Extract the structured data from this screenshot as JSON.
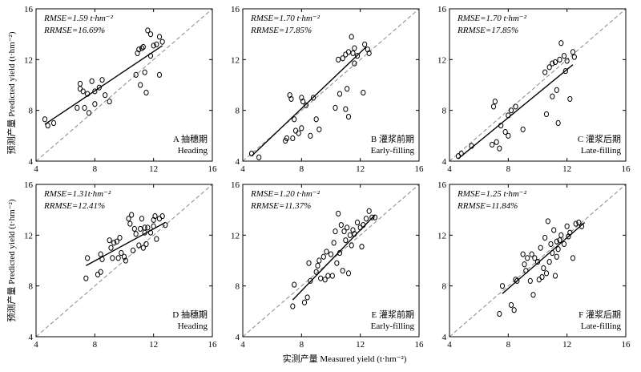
{
  "figure": {
    "x_axis_title": "实测产量 Measured yield (t·hm⁻²)",
    "y_axis_title": "预测产量 Predicted yield (t·hm⁻²)",
    "line_color": "#000000",
    "reference_line_color": "#888888"
  },
  "chart_data": [
    {
      "type": "scatter",
      "panel_id": "A",
      "label_cn": "A 抽穗期",
      "label_en": "Heading",
      "rmse_text": "RMSE=1.59 t·hm⁻²",
      "rrmse_text": "RRMSE=16.69%",
      "xlim": [
        4,
        16
      ],
      "ylim": [
        4,
        16
      ],
      "x_ticks": [
        "4",
        "8",
        "12",
        "16"
      ],
      "y_ticks": [
        "4",
        "8",
        "12",
        "16"
      ],
      "reference_line": "1:1",
      "fit_line": [
        [
          4.6,
          6.9
        ],
        [
          12.6,
          13.1
        ]
      ],
      "points": [
        [
          4.6,
          7.3
        ],
        [
          4.8,
          6.8
        ],
        [
          5.2,
          7.0
        ],
        [
          6.8,
          8.2
        ],
        [
          7.0,
          10.1
        ],
        [
          7.0,
          9.7
        ],
        [
          7.2,
          9.5
        ],
        [
          7.3,
          8.2
        ],
        [
          7.5,
          9.3
        ],
        [
          7.6,
          7.8
        ],
        [
          7.8,
          10.3
        ],
        [
          8.0,
          8.5
        ],
        [
          8.0,
          9.5
        ],
        [
          8.3,
          9.8
        ],
        [
          8.5,
          10.4
        ],
        [
          8.7,
          9.2
        ],
        [
          9.0,
          8.7
        ],
        [
          10.8,
          10.8
        ],
        [
          10.9,
          12.5
        ],
        [
          11.0,
          12.8
        ],
        [
          11.1,
          10.0
        ],
        [
          11.2,
          12.9
        ],
        [
          11.3,
          13.0
        ],
        [
          11.4,
          11.0
        ],
        [
          11.5,
          9.4
        ],
        [
          11.6,
          14.3
        ],
        [
          11.8,
          14.0
        ],
        [
          11.8,
          12.3
        ],
        [
          12.0,
          13.1
        ],
        [
          12.2,
          13.2
        ],
        [
          12.4,
          10.8
        ],
        [
          12.4,
          13.8
        ],
        [
          12.6,
          13.4
        ]
      ]
    },
    {
      "type": "scatter",
      "panel_id": "B",
      "label_cn": "B 灌浆前期",
      "label_en": "Early-filling",
      "rmse_text": "RMSE=1.70 t·hm⁻²",
      "rrmse_text": "RRMSE=17.85%",
      "xlim": [
        4,
        16
      ],
      "ylim": [
        4,
        16
      ],
      "x_ticks": [
        "4",
        "8",
        "12",
        "16"
      ],
      "y_ticks": [
        "4",
        "8",
        "12",
        "16"
      ],
      "reference_line": "1:1",
      "fit_line": [
        [
          4.6,
          4.4
        ],
        [
          12.4,
          13.0
        ]
      ],
      "points": [
        [
          4.6,
          4.6
        ],
        [
          5.1,
          4.3
        ],
        [
          6.9,
          5.6
        ],
        [
          7.0,
          5.8
        ],
        [
          7.2,
          9.2
        ],
        [
          7.3,
          8.9
        ],
        [
          7.4,
          5.8
        ],
        [
          7.5,
          7.3
        ],
        [
          7.6,
          6.4
        ],
        [
          7.8,
          6.2
        ],
        [
          8.0,
          9.0
        ],
        [
          8.0,
          6.6
        ],
        [
          8.1,
          8.7
        ],
        [
          8.3,
          8.4
        ],
        [
          8.6,
          6.0
        ],
        [
          8.8,
          9.0
        ],
        [
          9.0,
          7.3
        ],
        [
          9.2,
          6.5
        ],
        [
          10.3,
          8.2
        ],
        [
          10.5,
          12.0
        ],
        [
          10.6,
          9.3
        ],
        [
          10.8,
          12.1
        ],
        [
          11.0,
          12.4
        ],
        [
          11.0,
          8.1
        ],
        [
          11.1,
          9.7
        ],
        [
          11.2,
          12.6
        ],
        [
          11.4,
          13.8
        ],
        [
          11.5,
          12.5
        ],
        [
          11.6,
          12.9
        ],
        [
          11.6,
          11.7
        ],
        [
          11.8,
          12.3
        ],
        [
          12.2,
          9.4
        ],
        [
          12.3,
          13.2
        ],
        [
          12.5,
          12.8
        ],
        [
          12.6,
          12.5
        ],
        [
          11.2,
          7.5
        ]
      ]
    },
    {
      "type": "scatter",
      "panel_id": "C",
      "label_cn": "C 灌浆后期",
      "label_en": "Late-filling",
      "rmse_text": "RMSE=1.70 t·hm⁻²",
      "rrmse_text": "RRMSE=17.85%",
      "xlim": [
        4,
        16
      ],
      "ylim": [
        4,
        16
      ],
      "x_ticks": [
        "4",
        "8",
        "12",
        "16"
      ],
      "y_ticks": [
        "4",
        "8",
        "12",
        "16"
      ],
      "reference_line": "1:1",
      "fit_line": [
        [
          4.6,
          4.2
        ],
        [
          12.4,
          11.6
        ]
      ],
      "points": [
        [
          4.6,
          4.4
        ],
        [
          4.8,
          4.6
        ],
        [
          5.5,
          5.2
        ],
        [
          6.9,
          5.3
        ],
        [
          7.0,
          8.3
        ],
        [
          7.1,
          8.7
        ],
        [
          7.2,
          5.5
        ],
        [
          7.4,
          5.0
        ],
        [
          7.5,
          6.8
        ],
        [
          7.8,
          6.3
        ],
        [
          8.0,
          7.6
        ],
        [
          8.0,
          6.0
        ],
        [
          8.2,
          8.0
        ],
        [
          8.5,
          8.3
        ],
        [
          9.0,
          6.5
        ],
        [
          10.5,
          11.0
        ],
        [
          10.6,
          7.7
        ],
        [
          10.8,
          11.4
        ],
        [
          11.0,
          9.1
        ],
        [
          11.0,
          11.7
        ],
        [
          11.2,
          11.8
        ],
        [
          11.3,
          9.6
        ],
        [
          11.4,
          7.0
        ],
        [
          11.5,
          12.0
        ],
        [
          11.6,
          13.3
        ],
        [
          11.8,
          12.3
        ],
        [
          12.0,
          11.9
        ],
        [
          12.2,
          8.9
        ],
        [
          12.4,
          12.6
        ],
        [
          12.5,
          12.2
        ],
        [
          11.9,
          11.1
        ]
      ]
    },
    {
      "type": "scatter",
      "panel_id": "D",
      "label_cn": "D 抽穗期",
      "label_en": "Heading",
      "rmse_text": "RMSE=1.31t·hm⁻²",
      "rrmse_text": "RRMSE=12.41%",
      "xlim": [
        4,
        16
      ],
      "ylim": [
        4,
        16
      ],
      "x_ticks": [
        "4",
        "8",
        "12",
        "16"
      ],
      "y_ticks": [
        "4",
        "8",
        "12",
        "16"
      ],
      "reference_line": "1:1",
      "fit_line": [
        [
          7.4,
          9.6
        ],
        [
          12.8,
          13.0
        ]
      ],
      "points": [
        [
          7.4,
          8.6
        ],
        [
          7.5,
          10.2
        ],
        [
          8.2,
          8.9
        ],
        [
          8.4,
          10.5
        ],
        [
          8.4,
          9.1
        ],
        [
          8.5,
          10.1
        ],
        [
          9.0,
          11.6
        ],
        [
          9.1,
          11.0
        ],
        [
          9.2,
          10.2
        ],
        [
          9.3,
          11.4
        ],
        [
          9.5,
          11.5
        ],
        [
          9.6,
          10.2
        ],
        [
          9.7,
          11.8
        ],
        [
          9.8,
          10.6
        ],
        [
          10.0,
          10.3
        ],
        [
          10.1,
          10.0
        ],
        [
          10.3,
          13.3
        ],
        [
          10.4,
          12.9
        ],
        [
          10.5,
          13.6
        ],
        [
          10.6,
          10.8
        ],
        [
          10.7,
          12.5
        ],
        [
          10.8,
          12.1
        ],
        [
          11.0,
          11.2
        ],
        [
          11.1,
          12.5
        ],
        [
          11.2,
          13.3
        ],
        [
          11.3,
          11.0
        ],
        [
          11.4,
          12.2
        ],
        [
          11.5,
          11.3
        ],
        [
          11.6,
          12.6
        ],
        [
          11.8,
          12.2
        ],
        [
          12.0,
          12.7
        ],
        [
          12.1,
          13.5
        ],
        [
          12.2,
          11.7
        ],
        [
          12.4,
          13.3
        ],
        [
          12.6,
          13.5
        ],
        [
          12.8,
          12.8
        ],
        [
          12.0,
          13.2
        ],
        [
          11.4,
          12.6
        ]
      ]
    },
    {
      "type": "scatter",
      "panel_id": "E",
      "label_cn": "E 灌浆前期",
      "label_en": "Early-filling",
      "rmse_text": "RMSE=1.20 t·hm⁻²",
      "rrmse_text": "RRMSE=11.37%",
      "xlim": [
        4,
        16
      ],
      "ylim": [
        4,
        16
      ],
      "x_ticks": [
        "4",
        "8",
        "12",
        "16"
      ],
      "y_ticks": [
        "4",
        "8",
        "12",
        "16"
      ],
      "reference_line": "1:1",
      "fit_line": [
        [
          7.4,
          6.9
        ],
        [
          13.0,
          13.6
        ]
      ],
      "points": [
        [
          7.4,
          6.4
        ],
        [
          7.5,
          8.1
        ],
        [
          8.2,
          6.7
        ],
        [
          8.4,
          7.1
        ],
        [
          8.5,
          9.8
        ],
        [
          8.6,
          8.4
        ],
        [
          9.0,
          9.1
        ],
        [
          9.1,
          9.6
        ],
        [
          9.2,
          10.0
        ],
        [
          9.3,
          8.6
        ],
        [
          9.5,
          10.3
        ],
        [
          9.6,
          8.5
        ],
        [
          9.7,
          10.7
        ],
        [
          9.8,
          8.8
        ],
        [
          10.0,
          10.5
        ],
        [
          10.1,
          8.8
        ],
        [
          10.2,
          11.4
        ],
        [
          10.3,
          12.3
        ],
        [
          10.4,
          9.8
        ],
        [
          10.5,
          13.7
        ],
        [
          10.6,
          10.6
        ],
        [
          10.7,
          12.8
        ],
        [
          10.8,
          9.2
        ],
        [
          10.9,
          12.3
        ],
        [
          11.0,
          11.6
        ],
        [
          11.1,
          12.6
        ],
        [
          11.2,
          9.0
        ],
        [
          11.3,
          12.0
        ],
        [
          11.4,
          11.2
        ],
        [
          11.5,
          12.4
        ],
        [
          11.6,
          12.1
        ],
        [
          11.8,
          13.0
        ],
        [
          12.0,
          12.6
        ],
        [
          12.1,
          11.1
        ],
        [
          12.2,
          12.8
        ],
        [
          12.4,
          13.3
        ],
        [
          12.6,
          13.9
        ],
        [
          12.8,
          13.4
        ],
        [
          13.0,
          13.4
        ]
      ]
    },
    {
      "type": "scatter",
      "panel_id": "F",
      "label_cn": "F 灌浆后期",
      "label_en": "Late-filling",
      "rmse_text": "RMSE=1.25 t·hm⁻²",
      "rrmse_text": "RRMSE=11.84%",
      "xlim": [
        4,
        16
      ],
      "ylim": [
        4,
        16
      ],
      "x_ticks": [
        "4",
        "8",
        "12",
        "16"
      ],
      "y_ticks": [
        "4",
        "8",
        "12",
        "16"
      ],
      "reference_line": "1:1",
      "fit_line": [
        [
          7.6,
          7.4
        ],
        [
          13.2,
          13.0
        ]
      ],
      "points": [
        [
          7.4,
          5.8
        ],
        [
          7.6,
          8.0
        ],
        [
          8.2,
          6.5
        ],
        [
          8.4,
          6.1
        ],
        [
          8.5,
          8.5
        ],
        [
          8.6,
          8.4
        ],
        [
          9.0,
          10.5
        ],
        [
          9.1,
          9.7
        ],
        [
          9.2,
          9.2
        ],
        [
          9.3,
          10.2
        ],
        [
          9.5,
          8.4
        ],
        [
          9.6,
          10.5
        ],
        [
          9.7,
          7.3
        ],
        [
          9.8,
          10.2
        ],
        [
          10.0,
          9.9
        ],
        [
          10.1,
          8.5
        ],
        [
          10.2,
          11.0
        ],
        [
          10.3,
          8.7
        ],
        [
          10.4,
          9.4
        ],
        [
          10.5,
          11.8
        ],
        [
          10.6,
          9.0
        ],
        [
          10.7,
          13.1
        ],
        [
          10.8,
          9.9
        ],
        [
          10.9,
          11.3
        ],
        [
          11.0,
          10.6
        ],
        [
          11.1,
          12.4
        ],
        [
          11.2,
          8.8
        ],
        [
          11.3,
          11.5
        ],
        [
          11.4,
          10.9
        ],
        [
          11.5,
          11.6
        ],
        [
          11.6,
          12.0
        ],
        [
          11.8,
          11.3
        ],
        [
          12.0,
          12.7
        ],
        [
          12.1,
          11.9
        ],
        [
          12.2,
          12.2
        ],
        [
          12.4,
          10.2
        ],
        [
          12.6,
          12.9
        ],
        [
          12.8,
          13.0
        ],
        [
          13.0,
          12.7
        ],
        [
          11.3,
          10.3
        ]
      ]
    }
  ]
}
